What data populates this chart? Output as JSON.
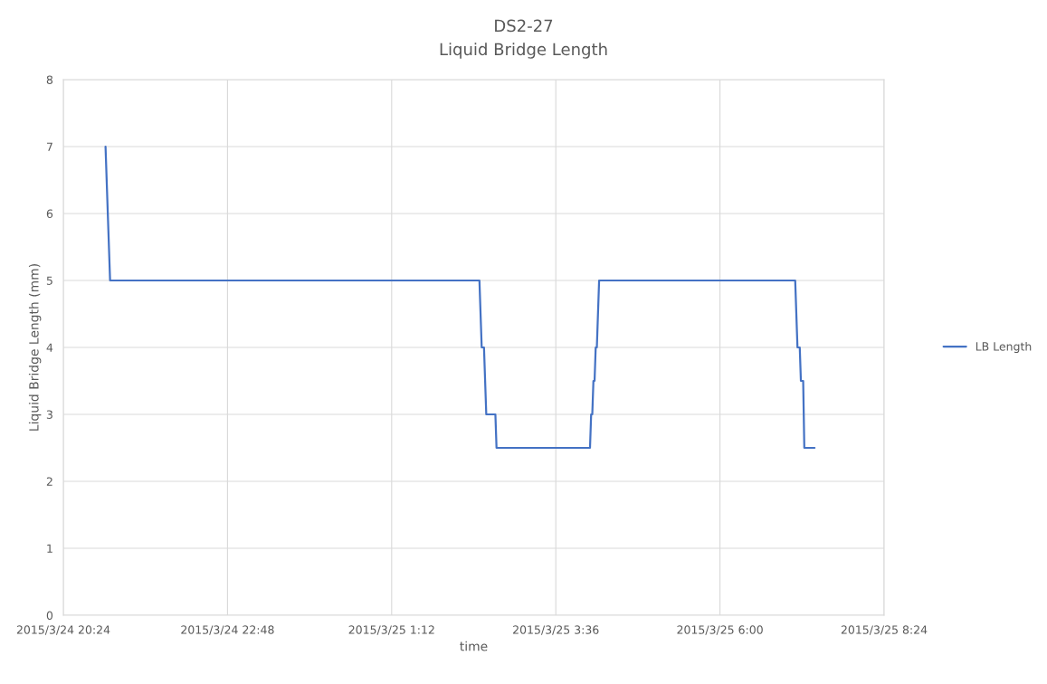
{
  "chart_data": {
    "type": "line",
    "title": "DS2-27",
    "subtitle": "Liquid Bridge Length",
    "xlabel": "time",
    "ylabel": "Liquid Bridge Length (mm)",
    "series": [
      {
        "name": "LB Length",
        "color": "#4472c4",
        "x": [
          "2015-03-24T21:01",
          "2015-03-24T21:03",
          "2015-03-24T21:05",
          "2015-03-25T02:29",
          "2015-03-25T02:31",
          "2015-03-25T02:33",
          "2015-03-25T02:35",
          "2015-03-25T02:43",
          "2015-03-25T02:44",
          "2015-03-25T04:06",
          "2015-03-25T04:07",
          "2015-03-25T04:08",
          "2015-03-25T04:09",
          "2015-03-25T04:10",
          "2015-03-25T04:11",
          "2015-03-25T04:12",
          "2015-03-25T04:14",
          "2015-03-25T07:06",
          "2015-03-25T07:08",
          "2015-03-25T07:10",
          "2015-03-25T07:11",
          "2015-03-25T07:13",
          "2015-03-25T07:14",
          "2015-03-25T07:23"
        ],
        "values": [
          7,
          6,
          5,
          5,
          4,
          4,
          3,
          3,
          2.5,
          2.5,
          3,
          3,
          3.5,
          3.5,
          4,
          4,
          5,
          5,
          4,
          4,
          3.5,
          3.5,
          2.5,
          2.5
        ]
      }
    ],
    "xlim": [
      "2015-03-24T20:24",
      "2015-03-25T08:24"
    ],
    "xticks": [
      {
        "value": "2015-03-24T20:24",
        "label": "2015/3/24 20:24"
      },
      {
        "value": "2015-03-24T22:48",
        "label": "2015/3/24 22:48"
      },
      {
        "value": "2015-03-25T01:12",
        "label": "2015/3/25 1:12"
      },
      {
        "value": "2015-03-25T03:36",
        "label": "2015/3/25 3:36"
      },
      {
        "value": "2015-03-25T06:00",
        "label": "2015/3/25 6:00"
      },
      {
        "value": "2015-03-25T08:24",
        "label": "2015/3/25 8:24"
      }
    ],
    "ylim": [
      0,
      8
    ],
    "yticks": [
      0,
      1,
      2,
      3,
      4,
      5,
      6,
      7,
      8
    ],
    "grid": true,
    "legend": "right",
    "line_style": "solid",
    "marker": "none"
  }
}
